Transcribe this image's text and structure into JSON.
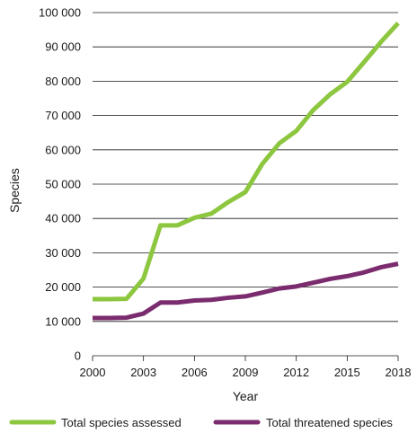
{
  "chart_data": {
    "type": "line",
    "xlabel": "Year",
    "ylabel": "Species",
    "xlim": [
      2000,
      2018
    ],
    "ylim": [
      0,
      100000
    ],
    "x_ticks": [
      2000,
      2003,
      2006,
      2009,
      2012,
      2015,
      2018
    ],
    "y_ticks": [
      0,
      10000,
      20000,
      30000,
      40000,
      50000,
      60000,
      70000,
      80000,
      90000,
      100000
    ],
    "x_tick_labels": [
      "2000",
      "2003",
      "2006",
      "2009",
      "2012",
      "2015",
      "2018"
    ],
    "y_tick_labels": [
      "0",
      "10 000",
      "20 000",
      "30 000",
      "40 000",
      "50 000",
      "60 000",
      "70 000",
      "80 000",
      "90 000",
      "100 000"
    ],
    "grid": "horizontal",
    "legend_position": "bottom",
    "x": [
      2000,
      2001,
      2002,
      2003,
      2004,
      2005,
      2006,
      2007,
      2008,
      2009,
      2010,
      2011,
      2012,
      2013,
      2014,
      2015,
      2016,
      2017,
      2018
    ],
    "series": [
      {
        "name": "Total species assessed",
        "color": "#8dc63f",
        "values": [
          16500,
          16500,
          16600,
          22500,
          38000,
          38000,
          40200,
          41400,
          44800,
          47700,
          55900,
          61900,
          65500,
          71600,
          76200,
          79800,
          85600,
          91500,
          96900
        ]
      },
      {
        "name": "Total threatened species",
        "color": "#7b2c6e",
        "values": [
          11000,
          11000,
          11100,
          12300,
          15500,
          15500,
          16100,
          16300,
          16900,
          17300,
          18400,
          19600,
          20200,
          21300,
          22400,
          23200,
          24300,
          25800,
          26800
        ]
      }
    ]
  }
}
